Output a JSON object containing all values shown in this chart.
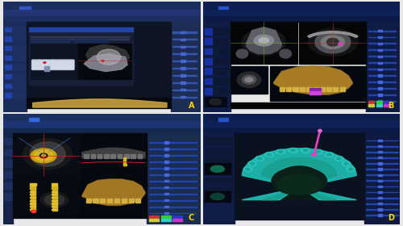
{
  "figsize": [
    5.0,
    2.8
  ],
  "dpi": 100,
  "border_color": "#e8e8e8",
  "label_color": "#f5d800",
  "label_fontsize": 7,
  "panels": {
    "A": {
      "bg": "#1c2a4a",
      "toolbar_color": "#1e3060",
      "toolbar2_color": "#253870",
      "sidebar_left": "#1a2d5a",
      "sidebar_right": "#1e2d55",
      "content_bg": "#0d1525",
      "dialog_bg": "#1a2540",
      "dialog_header": "#2244aa",
      "teeth_color": "#c0c8d8",
      "xray_bg": "#080c10",
      "skull_color1": "#505060",
      "skull_color2": "#303040",
      "skull_color3": "#909090",
      "jaw_color": "#c8a050",
      "jaw_bg": "#090e18"
    },
    "B": {
      "bg": "#101828",
      "toolbar_color": "#0e2050",
      "sidebar_left": "#0f1d45",
      "sidebar_right": "#0f1d45",
      "ct_bg": "#040608",
      "ct_skull1": "#707070",
      "ct_skull2": "#909090",
      "ct_skull3": "#b0b0b0",
      "jaw_bg": "#06080f",
      "jaw_color": "#b89030",
      "jaw_bright": "#d4a840",
      "implant_pink": "#cc44aa",
      "teeth_color": "#d4b060"
    },
    "C": {
      "bg": "#101828",
      "toolbar_color": "#1a3060",
      "sidebar_left": "#182850",
      "sidebar_right": "#1a2c50",
      "ct_bg_tl": "#0a0e18",
      "ct_bg_tr": "#080c12",
      "ct_bg_bl": "#06090f",
      "ct_bg_br": "#07090e",
      "implant_yellow": "#d4b820",
      "implant_dark": "#a08010",
      "xray_gray": "#484848",
      "jaw_gold": "#c8a030",
      "jaw_dark": "#806020",
      "red_curve": "#cc2222",
      "xray_teeth": "#606060"
    },
    "D": {
      "bg": "#0d1828",
      "toolbar_color": "#0e2050",
      "sidebar_left": "#0f1d45",
      "sidebar_right": "#0f1d40",
      "main_bg": "#0a1220",
      "teal_outer": "#20b8b0",
      "teal_mid": "#18a090",
      "teal_inner": "#108878",
      "dark_green": "#0a2818",
      "arch_dark": "#0c2020",
      "tooth_bump": "#28c8c0",
      "implant_pink": "#e040c0",
      "implant_top": "#e868d0"
    }
  }
}
